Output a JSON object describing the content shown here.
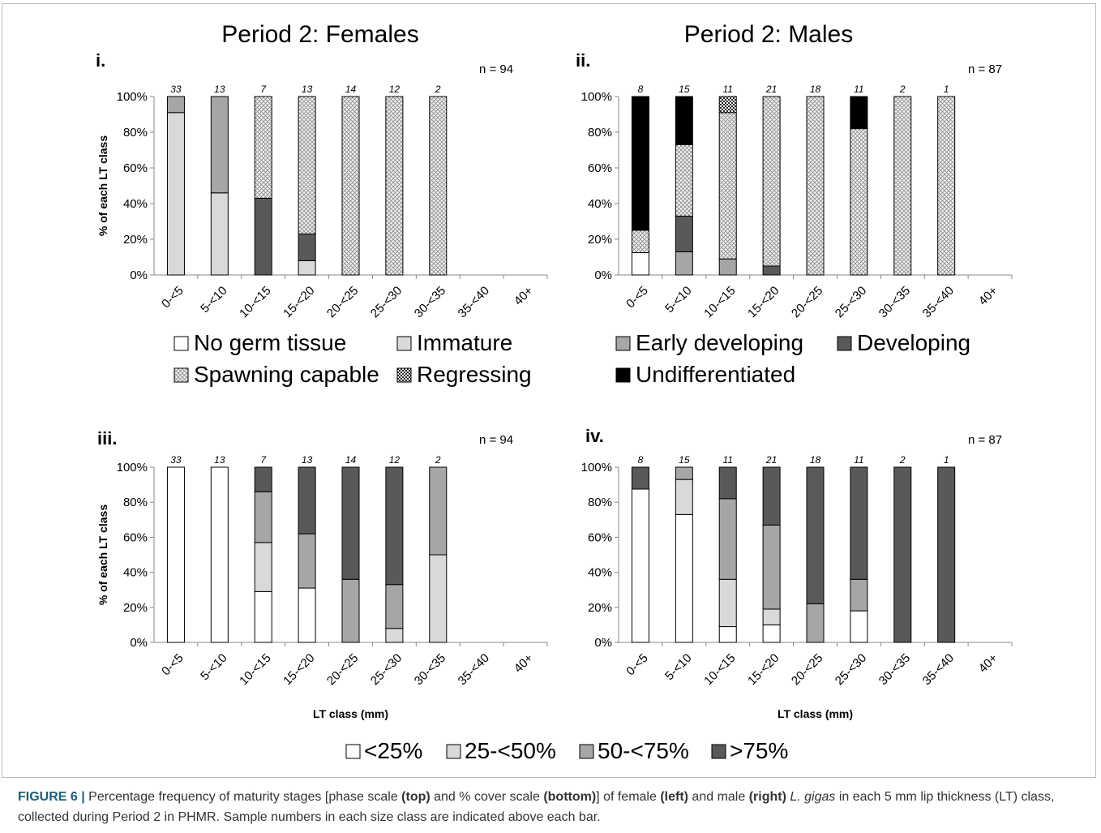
{
  "legend_phase": [
    {
      "label": "No germ tissue",
      "pattern": "white"
    },
    {
      "label": "Immature",
      "pattern": "light"
    },
    {
      "label": "Early developing",
      "pattern": "mid"
    },
    {
      "label": "Developing",
      "pattern": "dark"
    },
    {
      "label": "Spawning capable",
      "pattern": "dots"
    },
    {
      "label": "Regressing",
      "pattern": "check"
    },
    {
      "label": "Undifferentiated",
      "pattern": "black"
    }
  ],
  "legend_cover": [
    {
      "label": "<25%",
      "pattern": "white"
    },
    {
      "label": "25-<50%",
      "pattern": "light"
    },
    {
      "label": "50-<75%",
      "pattern": "mid"
    },
    {
      "label": ">75%",
      "pattern": "dark"
    }
  ],
  "colors": {
    "white": "#ffffff",
    "light": "#d9d9d9",
    "mid": "#a6a6a6",
    "dark": "#595959",
    "black": "#000000"
  },
  "chart_data": [
    {
      "type": "bar",
      "stacked": true,
      "panel": "i.",
      "title": "Period 2: Females",
      "n_label": "n = 94",
      "ylabel": "% of each LT class",
      "xlabel": "",
      "ylim": [
        0,
        100
      ],
      "yticks": [
        "0%",
        "20%",
        "40%",
        "60%",
        "80%",
        "100%"
      ],
      "categories": [
        "0-<5",
        "5-<10",
        "10-<15",
        "15-<20",
        "20-<25",
        "25-<30",
        "30-<35",
        "35-<40",
        "40+"
      ],
      "sample_counts": [
        "33",
        "13",
        "7",
        "13",
        "14",
        "12",
        "2",
        "",
        ""
      ],
      "series": [
        {
          "name": "No germ tissue",
          "pattern": "white",
          "values": [
            0,
            0,
            0,
            0,
            0,
            0,
            0,
            0,
            0
          ]
        },
        {
          "name": "Immature",
          "pattern": "light",
          "values": [
            91,
            46,
            0,
            8,
            0,
            0,
            0,
            0,
            0
          ]
        },
        {
          "name": "Early developing",
          "pattern": "mid",
          "values": [
            9,
            54,
            0,
            0,
            0,
            0,
            0,
            0,
            0
          ]
        },
        {
          "name": "Developing",
          "pattern": "dark",
          "values": [
            0,
            0,
            43,
            15,
            0,
            0,
            0,
            0,
            0
          ]
        },
        {
          "name": "Spawning capable",
          "pattern": "dots",
          "values": [
            0,
            0,
            57,
            77,
            100,
            100,
            100,
            0,
            0
          ]
        },
        {
          "name": "Regressing",
          "pattern": "check",
          "values": [
            0,
            0,
            0,
            0,
            0,
            0,
            0,
            0,
            0
          ]
        },
        {
          "name": "Undifferentiated",
          "pattern": "black",
          "values": [
            0,
            0,
            0,
            0,
            0,
            0,
            0,
            0,
            0
          ]
        }
      ]
    },
    {
      "type": "bar",
      "stacked": true,
      "panel": "ii.",
      "title": "Period 2: Males",
      "n_label": "n = 87",
      "ylabel": "",
      "xlabel": "",
      "ylim": [
        0,
        100
      ],
      "yticks": [
        "0%",
        "20%",
        "40%",
        "60%",
        "80%",
        "100%"
      ],
      "categories": [
        "0-<5",
        "5-<10",
        "10-<15",
        "15-<20",
        "20-<25",
        "25-<30",
        "30-<35",
        "35-<40",
        "40+"
      ],
      "sample_counts": [
        "8",
        "15",
        "11",
        "21",
        "18",
        "11",
        "2",
        "1",
        ""
      ],
      "series": [
        {
          "name": "No germ tissue",
          "pattern": "white",
          "values": [
            12.5,
            0,
            0,
            0,
            0,
            0,
            0,
            0,
            0
          ]
        },
        {
          "name": "Immature",
          "pattern": "light",
          "values": [
            0,
            0,
            0,
            0,
            0,
            0,
            0,
            0,
            0
          ]
        },
        {
          "name": "Early developing",
          "pattern": "mid",
          "values": [
            0,
            13,
            9,
            0,
            0,
            0,
            0,
            0,
            0
          ]
        },
        {
          "name": "Developing",
          "pattern": "dark",
          "values": [
            0,
            20,
            0,
            5,
            0,
            0,
            0,
            0,
            0
          ]
        },
        {
          "name": "Spawning capable",
          "pattern": "dots",
          "values": [
            12.5,
            40,
            82,
            95,
            100,
            82,
            100,
            100,
            0
          ]
        },
        {
          "name": "Regressing",
          "pattern": "check",
          "values": [
            0,
            0,
            9,
            0,
            0,
            0,
            0,
            0,
            0
          ]
        },
        {
          "name": "Undifferentiated",
          "pattern": "black",
          "values": [
            75,
            27,
            0,
            0,
            0,
            18,
            0,
            0,
            0
          ]
        }
      ]
    },
    {
      "type": "bar",
      "stacked": true,
      "panel": "iii.",
      "title": "",
      "n_label": "n = 94",
      "ylabel": "% of each LT class",
      "xlabel": "LT class (mm)",
      "ylim": [
        0,
        100
      ],
      "yticks": [
        "0%",
        "20%",
        "40%",
        "60%",
        "80%",
        "100%"
      ],
      "categories": [
        "0-<5",
        "5-<10",
        "10-<15",
        "15-<20",
        "20-<25",
        "25-<30",
        "30-<35",
        "35-<40",
        "40+"
      ],
      "sample_counts": [
        "33",
        "13",
        "7",
        "13",
        "14",
        "12",
        "2",
        "",
        ""
      ],
      "series": [
        {
          "name": "<25%",
          "pattern": "white",
          "values": [
            100,
            100,
            29,
            31,
            0,
            0,
            0,
            0,
            0
          ]
        },
        {
          "name": "25-<50%",
          "pattern": "light",
          "values": [
            0,
            0,
            28,
            0,
            0,
            8,
            50,
            0,
            0
          ]
        },
        {
          "name": "50-<75%",
          "pattern": "mid",
          "values": [
            0,
            0,
            29,
            31,
            36,
            25,
            50,
            0,
            0
          ]
        },
        {
          "name": ">75%",
          "pattern": "dark",
          "values": [
            0,
            0,
            14,
            38,
            64,
            67,
            0,
            0,
            0
          ]
        }
      ]
    },
    {
      "type": "bar",
      "stacked": true,
      "panel": "iv.",
      "title": "",
      "n_label": "n = 87",
      "ylabel": "",
      "xlabel": "LT class (mm)",
      "ylim": [
        0,
        100
      ],
      "yticks": [
        "0%",
        "20%",
        "40%",
        "60%",
        "80%",
        "100%"
      ],
      "categories": [
        "0-<5",
        "5-<10",
        "10-<15",
        "15-<20",
        "20-<25",
        "25-<30",
        "30-<35",
        "35-<40",
        "40+"
      ],
      "sample_counts": [
        "8",
        "15",
        "11",
        "21",
        "18",
        "11",
        "2",
        "1",
        ""
      ],
      "series": [
        {
          "name": "<25%",
          "pattern": "white",
          "values": [
            87.5,
            73,
            9,
            10,
            0,
            18,
            0,
            0,
            0
          ]
        },
        {
          "name": "25-<50%",
          "pattern": "light",
          "values": [
            0,
            20,
            27,
            9,
            0,
            0,
            0,
            0,
            0
          ]
        },
        {
          "name": "50-<75%",
          "pattern": "mid",
          "values": [
            0,
            7,
            46,
            48,
            22,
            18,
            0,
            0,
            0
          ]
        },
        {
          "name": ">75%",
          "pattern": "dark",
          "values": [
            12.5,
            0,
            18,
            33,
            78,
            64,
            100,
            100,
            0
          ]
        }
      ]
    }
  ],
  "caption": {
    "label": "FIGURE 6 |",
    "part1": " Percentage frequency of maturity stages [phase scale ",
    "top": "(top)",
    "part2": " and % cover scale ",
    "bottom": "(bottom)",
    "part3": "] of female ",
    "left": "(left)",
    "part4": " and male ",
    "right": "(right)",
    "species": " L. gigas",
    "part5": " in each 5 mm lip thickness (LT) class, collected during Period 2 in PHMR. Sample numbers in each size class are indicated above each bar."
  }
}
